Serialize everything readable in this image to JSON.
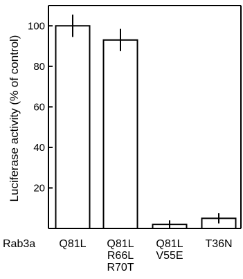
{
  "chart_data": {
    "type": "bar",
    "title": "",
    "xlabel": "Rab3a",
    "ylabel": "Luciferase activity (% of control)",
    "categories": [
      [
        "Q81L"
      ],
      [
        "Q81L",
        "R66L",
        "R70T"
      ],
      [
        "Q81L",
        "V55E"
      ],
      [
        "T36N"
      ]
    ],
    "values": [
      100,
      93,
      2,
      5
    ],
    "errors": [
      5.5,
      5.5,
      2,
      2.5
    ],
    "ylim": [
      0,
      110
    ],
    "yticks": [
      20,
      40,
      60,
      80,
      100
    ],
    "grid": false,
    "legend": "none"
  }
}
